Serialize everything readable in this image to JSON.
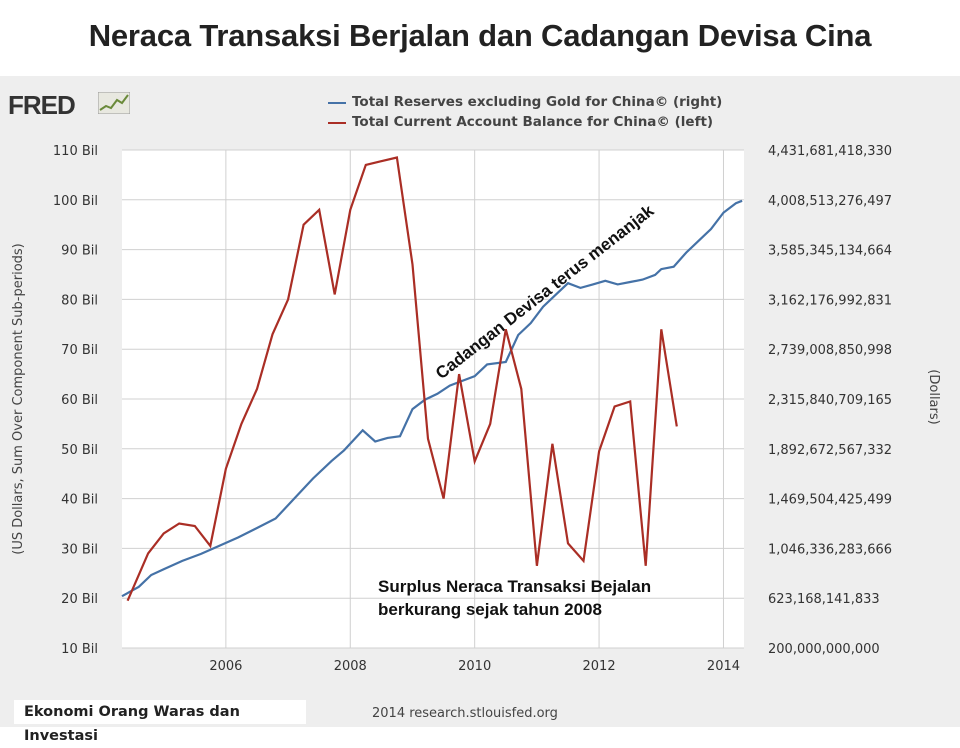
{
  "header": {
    "title": "Neraca Transaksi Berjalan dan Cadangan Devisa Cina"
  },
  "logo": {
    "text": "FRED",
    "icon": "fred-line-chart-icon"
  },
  "footer": {
    "source_label": "Ekonomi Orang Waras dan Investasi",
    "credit": "2014 research.stlouisfed.org"
  },
  "annotations": {
    "reserves_note": "Cadangan Devisa terus menanjak",
    "surplus_note_line1": "Surplus Neraca Transaksi Bejalan",
    "surplus_note_line2": "berkurang sejak tahun 2008"
  },
  "colors": {
    "reserves": "#4572a7",
    "current_account": "#aa2e25",
    "plot_bg": "#ffffff",
    "panel_bg": "#eeeeee",
    "grid": "#d0d0d0"
  },
  "chart_data": {
    "type": "line",
    "title": "Neraca Transaksi Berjalan dan Cadangan Devisa Cina",
    "ylabel_left": "(US Dollars, Sum Over Component Sub-periods)",
    "ylabel_right": "(Dollars)",
    "legend_position": "top",
    "grid": true,
    "xlim": [
      2004.33,
      2014.33
    ],
    "x_ticks": [
      2006,
      2008,
      2010,
      2012,
      2014
    ],
    "x_tick_labels": [
      "2006",
      "2008",
      "2010",
      "2012",
      "2014"
    ],
    "ylim_left": [
      10,
      110
    ],
    "y_left_ticks": [
      10,
      20,
      30,
      40,
      50,
      60,
      70,
      80,
      90,
      100,
      110
    ],
    "y_left_tick_labels": [
      "10 Bil",
      "20 Bil",
      "30 Bil",
      "40 Bil",
      "50 Bil",
      "60 Bil",
      "70 Bil",
      "80 Bil",
      "90 Bil",
      "100 Bil",
      "110 Bil"
    ],
    "ylim_right": [
      200000000000,
      4431681418330
    ],
    "y_right_ticks": [
      200000000000,
      623168141833,
      1046336283666,
      1469504425499,
      1892672567332,
      2315840709165,
      2739008850998,
      3162176992831,
      3585345134664,
      4008513276497,
      4431681418330
    ],
    "y_right_tick_labels": [
      "200,000,000,000",
      "623,168,141,833",
      "1,046,336,283,666",
      "1,469,504,425,499",
      "1,892,672,567,332",
      "2,315,840,709,165",
      "2,739,008,850,998",
      "3,162,176,992,831",
      "3,585,345,134,664",
      "4,008,513,276,497",
      "4,431,681,418,330"
    ],
    "series": [
      {
        "name": "Total Reserves excluding Gold for China© (right)",
        "axis": "right",
        "x": [
          2004.33,
          2004.6,
          2004.8,
          2005.0,
          2005.3,
          2005.6,
          2005.9,
          2006.2,
          2006.5,
          2006.8,
          2007.1,
          2007.4,
          2007.7,
          2007.9,
          2008.2,
          2008.4,
          2008.6,
          2008.8,
          2009.0,
          2009.2,
          2009.4,
          2009.6,
          2009.8,
          2010.0,
          2010.2,
          2010.5,
          2010.7,
          2010.9,
          2011.1,
          2011.3,
          2011.5,
          2011.7,
          2011.9,
          2012.1,
          2012.3,
          2012.5,
          2012.7,
          2012.9,
          2013.0,
          2013.2,
          2013.4,
          2013.6,
          2013.8,
          2014.0,
          2014.2,
          2014.3
        ],
        "y": [
          640000000000,
          720000000000,
          820000000000,
          870000000000,
          940000000000,
          1000000000000,
          1070000000000,
          1140000000000,
          1220000000000,
          1300000000000,
          1470000000000,
          1640000000000,
          1790000000000,
          1880000000000,
          2050000000000,
          1955000000000,
          1985000000000,
          2000000000000,
          2230000000000,
          2310000000000,
          2360000000000,
          2430000000000,
          2470000000000,
          2510000000000,
          2610000000000,
          2630000000000,
          2860000000000,
          2960000000000,
          3100000000000,
          3200000000000,
          3300000000000,
          3260000000000,
          3290000000000,
          3320000000000,
          3290000000000,
          3310000000000,
          3330000000000,
          3370000000000,
          3420000000000,
          3440000000000,
          3560000000000,
          3660000000000,
          3760000000000,
          3900000000000,
          3980000000000,
          4000000000000
        ]
      },
      {
        "name": "Total Current Account Balance for China© (left)",
        "axis": "left",
        "x": [
          2004.42,
          2004.75,
          2005.0,
          2005.25,
          2005.5,
          2005.75,
          2006.0,
          2006.25,
          2006.5,
          2006.75,
          2007.0,
          2007.25,
          2007.5,
          2007.75,
          2008.0,
          2008.25,
          2008.75,
          2009.0,
          2009.25,
          2009.5,
          2009.75,
          2010.0,
          2010.25,
          2010.5,
          2010.75,
          2011.0,
          2011.25,
          2011.5,
          2011.75,
          2012.0,
          2012.25,
          2012.5,
          2012.75,
          2013.0,
          2013.25
        ],
        "y": [
          19.5,
          29,
          33,
          35,
          34.5,
          30.5,
          46,
          55,
          62,
          73,
          80,
          95,
          98,
          81,
          98,
          107,
          108.5,
          87,
          52,
          40,
          65,
          47.5,
          55,
          74,
          62,
          26.5,
          51,
          31,
          27.5,
          49.5,
          58.5,
          59.5,
          26.5,
          74,
          54.5
        ]
      }
    ]
  }
}
